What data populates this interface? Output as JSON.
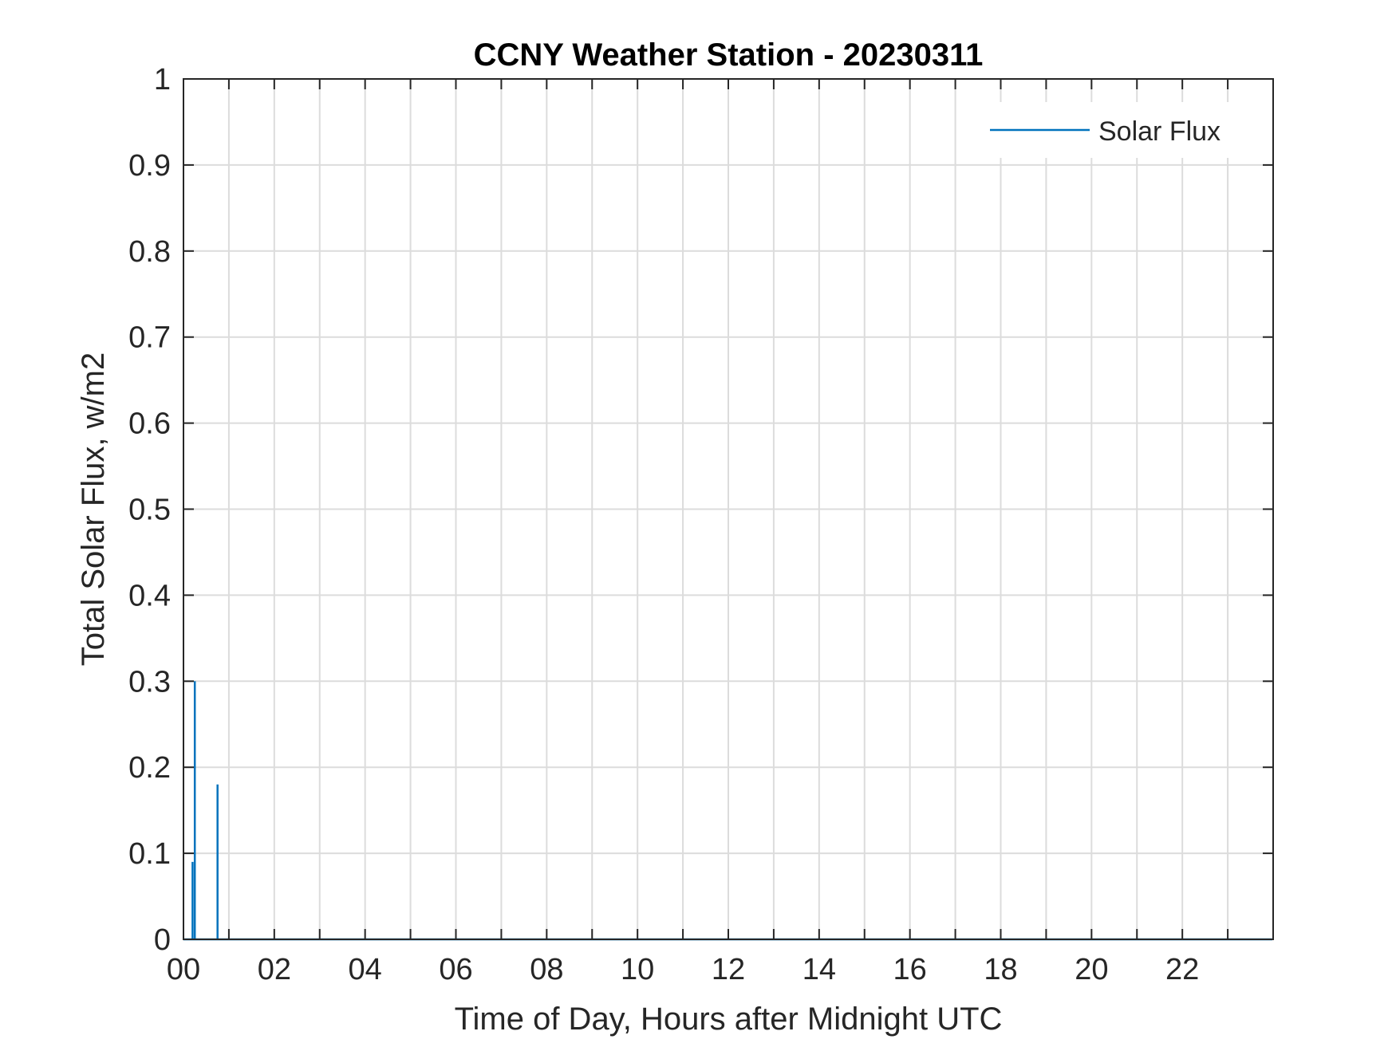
{
  "chart_data": {
    "type": "line",
    "title": "CCNY Weather Station - 20230311",
    "xlabel": "Time of Day, Hours after Midnight UTC",
    "ylabel": "Total Solar Flux, w/m2",
    "xlim": [
      0,
      24
    ],
    "ylim": [
      0,
      1
    ],
    "grid": true,
    "legend_location": "top-right",
    "x_ticks": [
      0,
      1,
      2,
      3,
      4,
      5,
      6,
      7,
      8,
      9,
      10,
      11,
      12,
      13,
      14,
      15,
      16,
      17,
      18,
      19,
      20,
      21,
      22,
      23
    ],
    "x_tick_labels": [
      {
        "x": 0,
        "label": "00"
      },
      {
        "x": 2,
        "label": "02"
      },
      {
        "x": 4,
        "label": "04"
      },
      {
        "x": 6,
        "label": "06"
      },
      {
        "x": 8,
        "label": "08"
      },
      {
        "x": 10,
        "label": "10"
      },
      {
        "x": 12,
        "label": "12"
      },
      {
        "x": 14,
        "label": "14"
      },
      {
        "x": 16,
        "label": "16"
      },
      {
        "x": 18,
        "label": "18"
      },
      {
        "x": 20,
        "label": "20"
      },
      {
        "x": 22,
        "label": "22"
      }
    ],
    "y_ticks": [
      {
        "y": 0,
        "label": "0"
      },
      {
        "y": 0.1,
        "label": "0.1"
      },
      {
        "y": 0.2,
        "label": "0.2"
      },
      {
        "y": 0.3,
        "label": "0.3"
      },
      {
        "y": 0.4,
        "label": "0.4"
      },
      {
        "y": 0.5,
        "label": "0.5"
      },
      {
        "y": 0.6,
        "label": "0.6"
      },
      {
        "y": 0.7,
        "label": "0.7"
      },
      {
        "y": 0.8,
        "label": "0.8"
      },
      {
        "y": 0.9,
        "label": "0.9"
      },
      {
        "y": 1,
        "label": "1"
      }
    ],
    "series": [
      {
        "name": "Solar Flux",
        "color": "#0072bd",
        "x": [
          0.0,
          0.2,
          0.2,
          0.2,
          0.25,
          0.25,
          0.25,
          0.75,
          0.75,
          0.75,
          1.0,
          12.0,
          23.98
        ],
        "y": [
          0,
          0,
          0.09,
          0,
          0,
          0.3,
          0,
          0,
          0.18,
          0,
          0,
          0,
          0
        ]
      }
    ]
  }
}
